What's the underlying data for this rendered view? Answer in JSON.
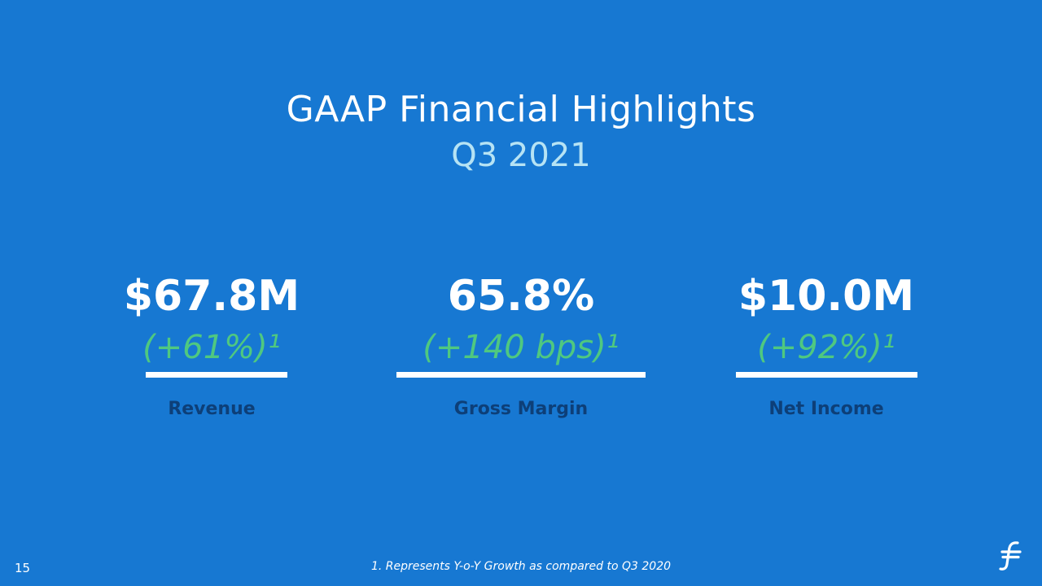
{
  "slide": {
    "title": "GAAP Financial Highlights",
    "subtitle": "Q3 2021",
    "page_number": "15",
    "footnote": "1. Represents Y-o-Y Growth as compared to Q3 2020",
    "colors": {
      "background": "#1778d2",
      "title": "#ffffff",
      "subtitle": "#b6e3f4",
      "growth": "#4fc880",
      "label": "#0d3f78"
    },
    "logo_icon": "brand-f-logo-icon"
  },
  "metrics": [
    {
      "value": "$67.8M",
      "growth": "(+61%)¹",
      "label": "Revenue"
    },
    {
      "value": "65.8%",
      "growth": "(+140 bps)¹",
      "label": "Gross Margin"
    },
    {
      "value": "$10.0M",
      "growth": "(+92%)¹",
      "label": "Net Income"
    }
  ]
}
